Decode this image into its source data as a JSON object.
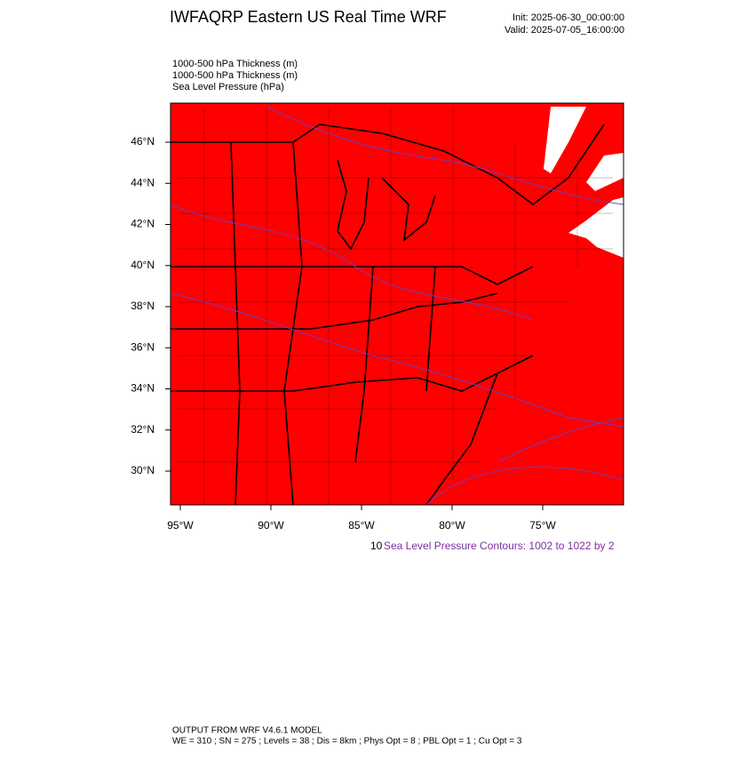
{
  "header": {
    "title": "IWFAQRP Eastern US Real Time WRF",
    "init": "Init: 2025-06-30_00:00:00",
    "valid": "Valid: 2025-07-05_16:00:00"
  },
  "fields": [
    "1000-500 hPa Thickness   (m)",
    "1000-500 hPa Thickness   (m)",
    "Sea Level Pressure   (hPa)"
  ],
  "map": {
    "lat_labels": [
      "46°N",
      "44°N",
      "42°N",
      "40°N",
      "38°N",
      "36°N",
      "34°N",
      "32°N",
      "30°N"
    ],
    "lon_labels": [
      "95°W",
      "90°W",
      "85°W",
      "80°W",
      "75°W"
    ]
  },
  "caption": {
    "overlap": "10",
    "text": "Sea Level Pressure Contours: 1002 to 1022 by 2"
  },
  "footer": {
    "line1": "OUTPUT FROM WRF V4.6.1 MODEL",
    "line2": "WE = 310 ; SN = 275 ; Levels = 38 ; Dis = 8km ; Phys Opt = 8 ; PBL Opt = 1 ; Cu Opt = 3"
  }
}
